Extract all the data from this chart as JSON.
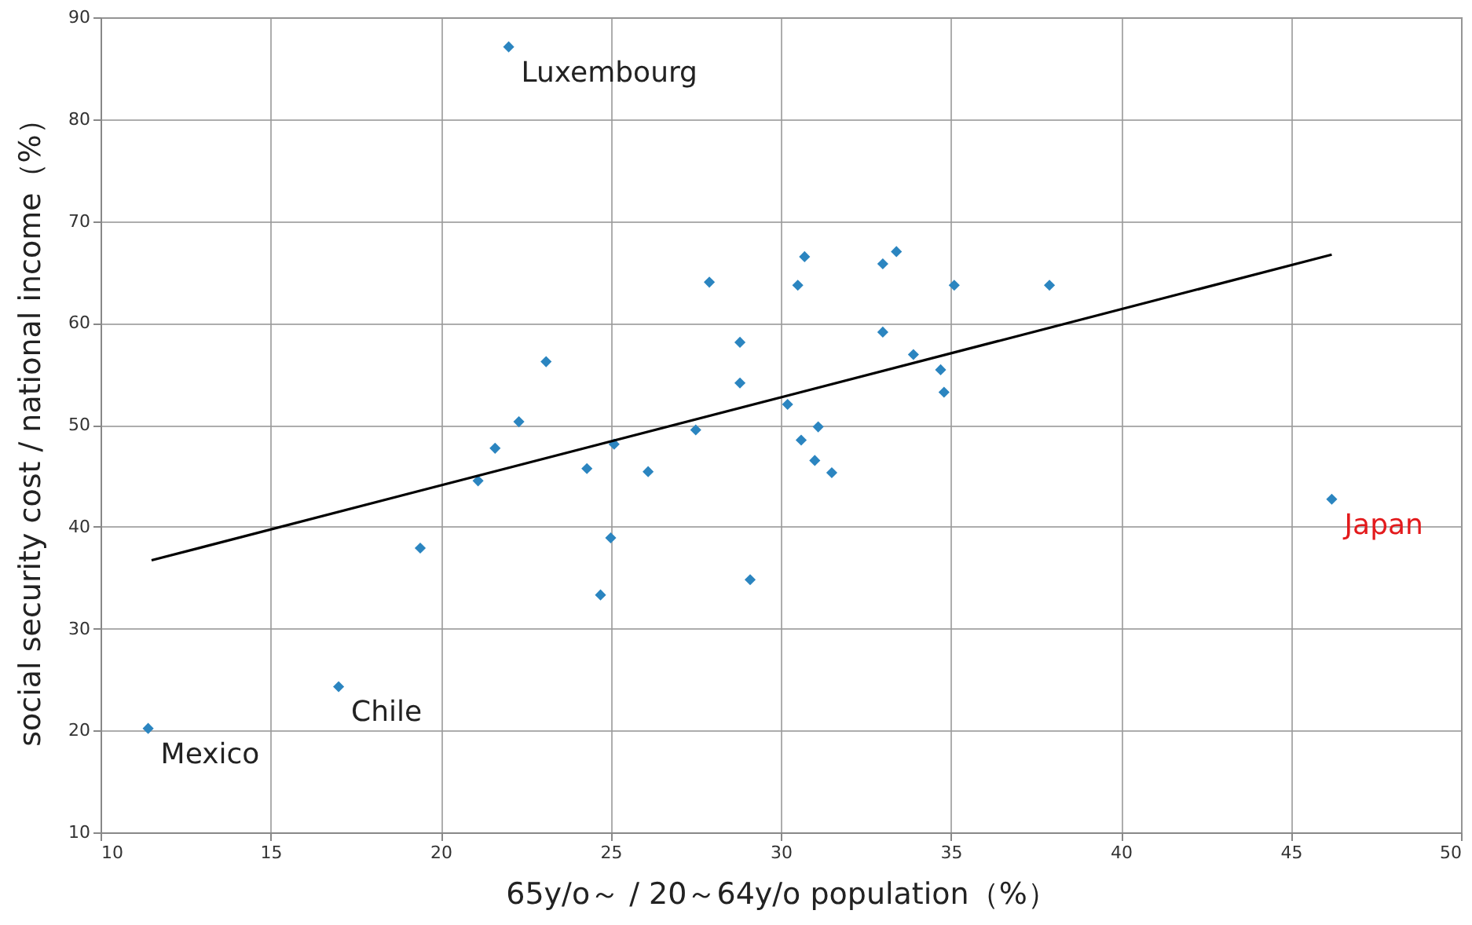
{
  "chart_data": {
    "type": "scatter",
    "xlabel": "65y/o～ / 20～64y/o population（%）",
    "ylabel": "social security cost / national income（%）",
    "xlim": [
      10,
      50
    ],
    "xticks": [
      10,
      15,
      20,
      25,
      30,
      35,
      40,
      45,
      50
    ],
    "ylim": [
      10,
      90
    ],
    "yticks": [
      10,
      20,
      30,
      40,
      50,
      60,
      70,
      80,
      90
    ],
    "grid": true,
    "series": [
      {
        "marker": "diamond",
        "color": "#2b85c0",
        "x": [
          22.0,
          11.4,
          17.0,
          19.4,
          21.1,
          21.6,
          22.3,
          23.1,
          24.3,
          24.7,
          25.0,
          25.1,
          26.1,
          27.5,
          27.9,
          28.8,
          28.8,
          29.1,
          30.2,
          30.7,
          30.5,
          30.6,
          31.1,
          31.0,
          31.5,
          33.0,
          33.4,
          33.0,
          33.9,
          34.7,
          34.8,
          35.1,
          37.9,
          46.2
        ],
        "values": [
          87.1,
          20.2,
          24.3,
          37.9,
          44.5,
          47.7,
          50.3,
          56.2,
          45.7,
          33.3,
          38.9,
          48.1,
          45.4,
          49.5,
          64.0,
          58.1,
          54.1,
          34.8,
          52.0,
          66.5,
          63.7,
          48.5,
          49.8,
          46.5,
          45.3,
          65.8,
          67.0,
          59.1,
          56.9,
          55.4,
          53.2,
          63.7,
          63.7,
          42.7
        ]
      },
      {
        "type": "line",
        "marker": "none",
        "color": "#000000",
        "x": [
          11.5,
          46.2
        ],
        "values": [
          36.7,
          66.7
        ]
      }
    ],
    "annotations": [
      {
        "text": "Luxembourg",
        "x": 22.0,
        "y": 87.1
      },
      {
        "text": "Chile",
        "x": 17.0,
        "y": 24.3
      },
      {
        "text": "Mexico",
        "x": 11.4,
        "y": 20.2
      },
      {
        "text": "Japan",
        "x": 46.2,
        "y": 42.7
      }
    ]
  }
}
